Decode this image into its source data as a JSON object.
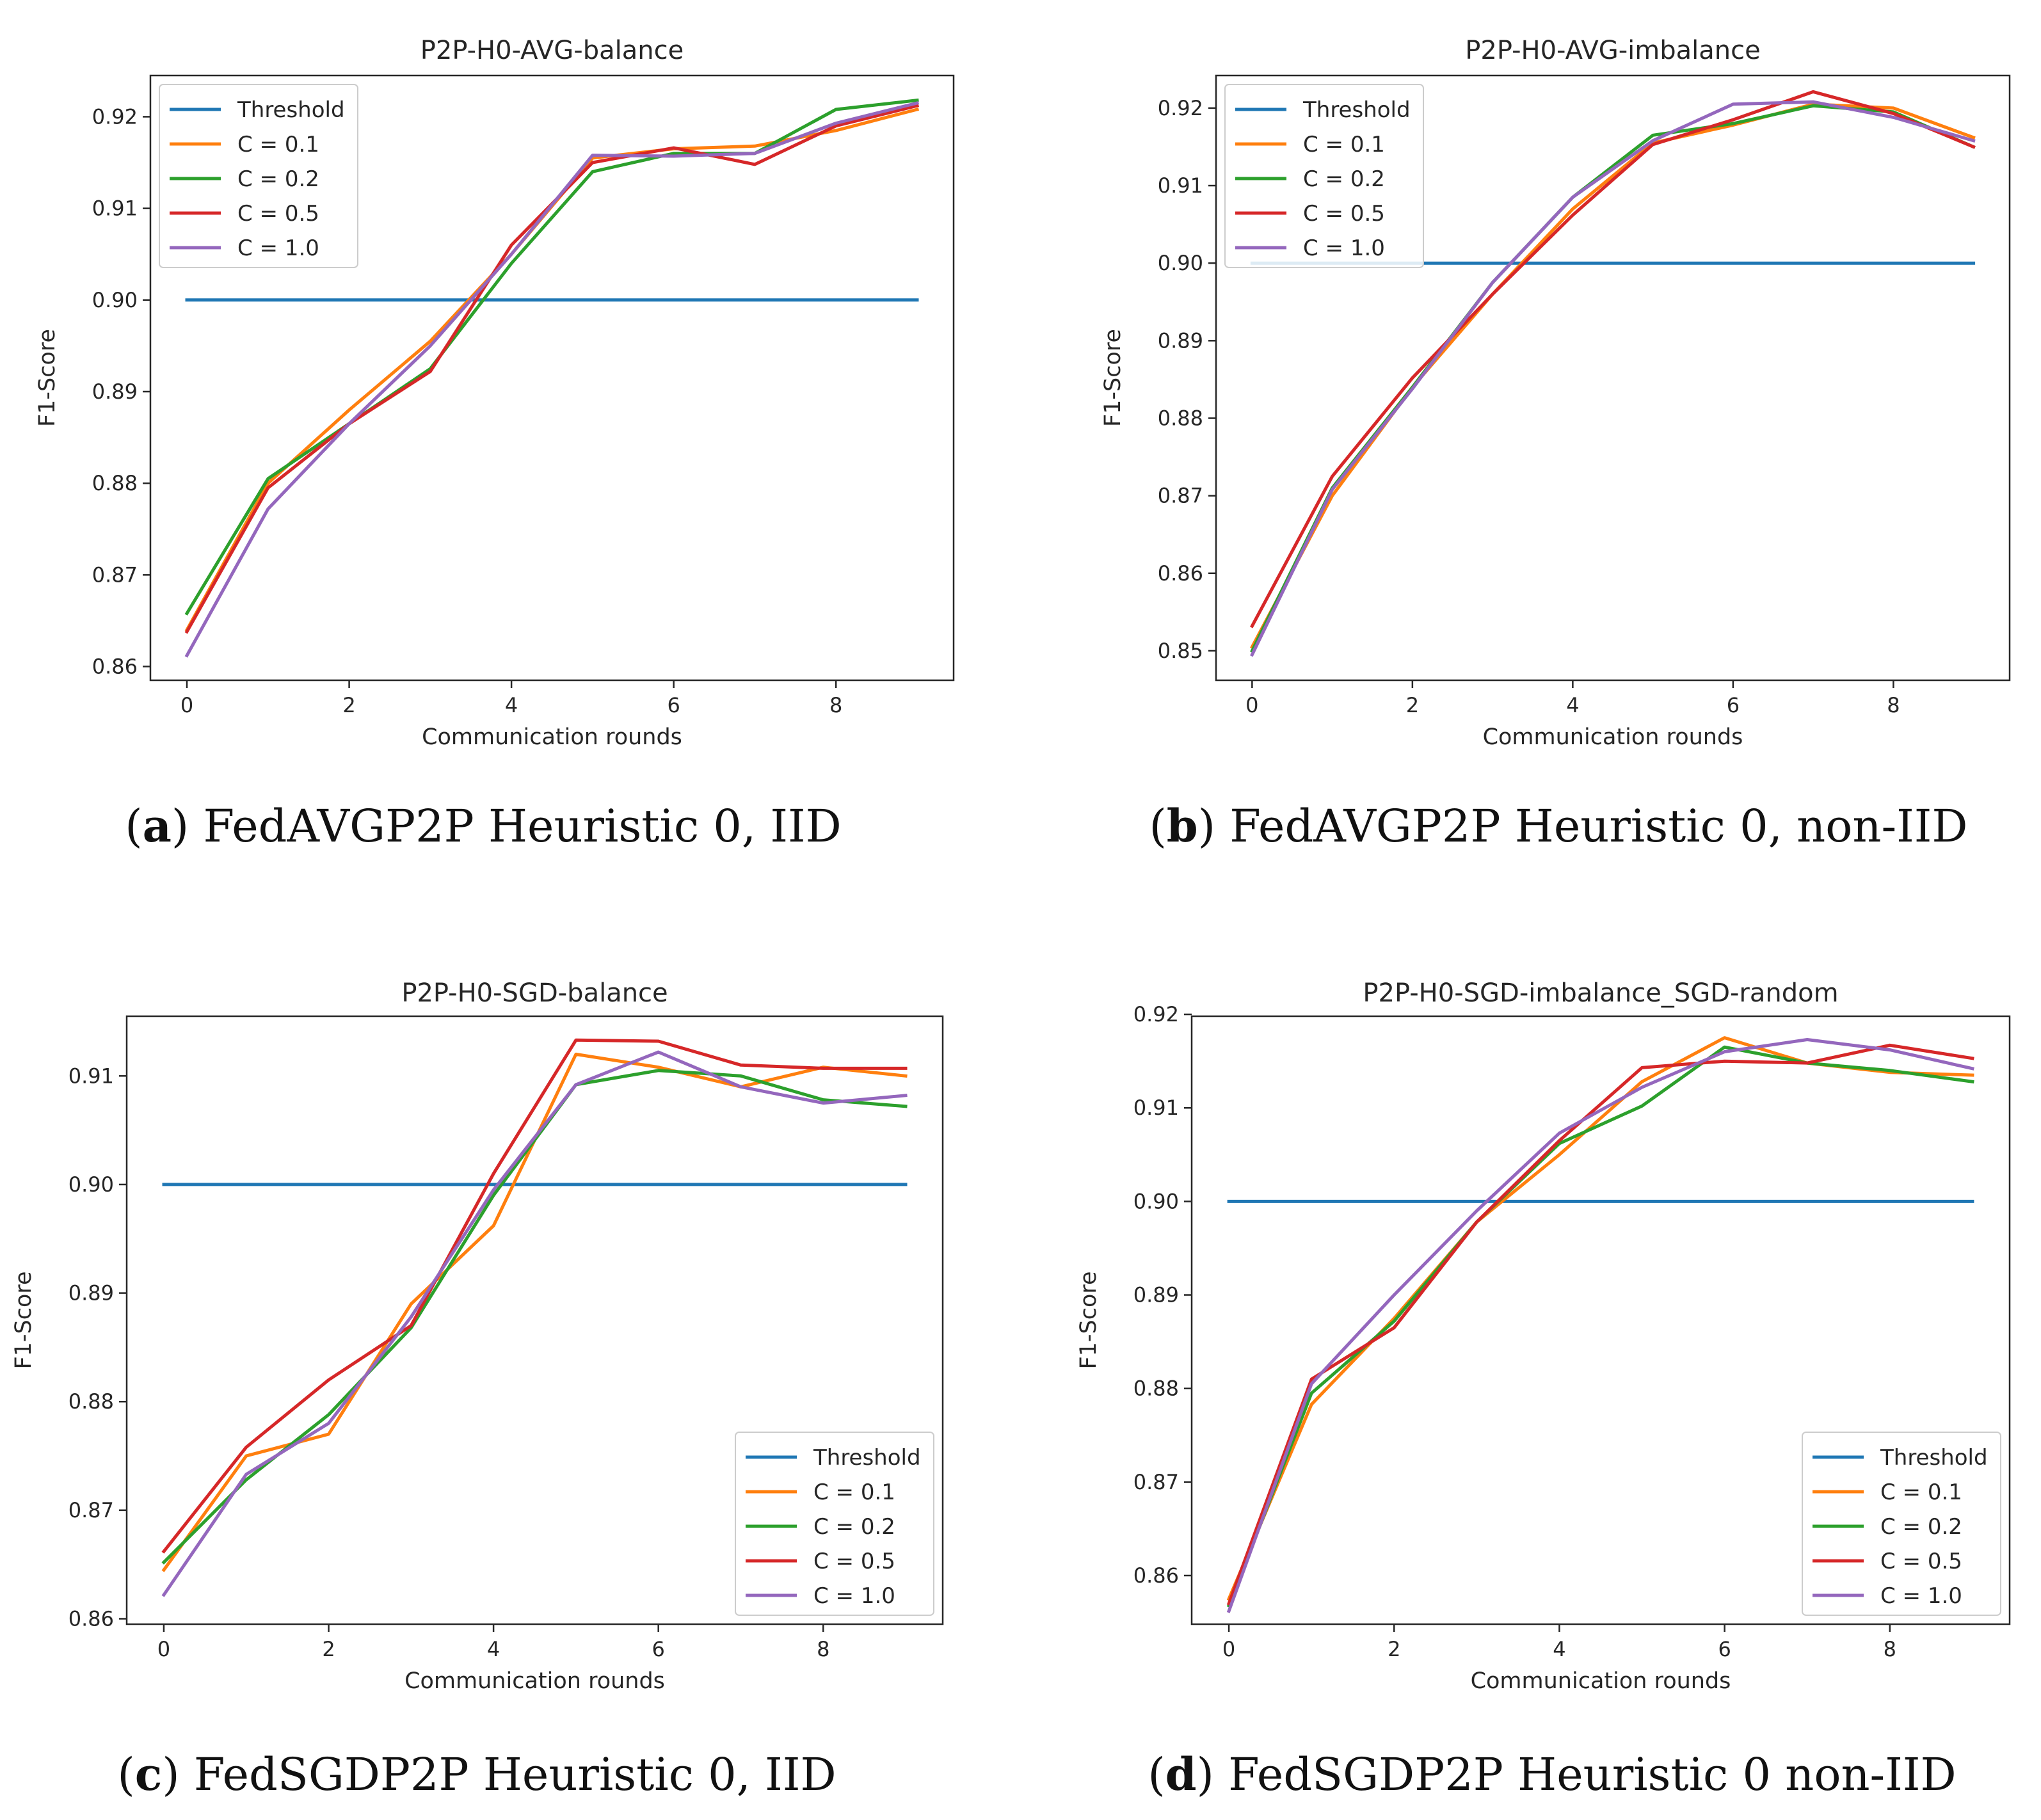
{
  "series_colors": [
    "#1f77b4",
    "#ff7f0e",
    "#2ca02c",
    "#d62728",
    "#9467bd"
  ],
  "chart_data": [
    {
      "type": "line",
      "title": "P2P-H0-AVG-balance",
      "xlabel": "Communication rounds",
      "ylabel": "F1-Score",
      "caption_letter": "a",
      "caption_text": "FedAVGP2P Heuristic 0, IID",
      "legend_position": "top-left",
      "grid": false,
      "xlim": [
        -0.45,
        9.45
      ],
      "ylim": [
        0.8585,
        0.9245
      ],
      "xticks": [
        0,
        2,
        4,
        6,
        8
      ],
      "xtick_labels": [
        "0",
        "2",
        "4",
        "6",
        "8"
      ],
      "yticks": [
        0.86,
        0.87,
        0.88,
        0.89,
        0.9,
        0.91,
        0.92
      ],
      "ytick_labels": [
        "0.86",
        "0.87",
        "0.88",
        "0.89",
        "0.90",
        "0.91",
        "0.92"
      ],
      "x": [
        0,
        1,
        2,
        3,
        4,
        5,
        6,
        7,
        8,
        9
      ],
      "series": [
        {
          "name": "Threshold",
          "values": [
            0.9,
            0.9,
            0.9,
            0.9,
            0.9,
            0.9,
            0.9,
            0.9,
            0.9,
            0.9
          ]
        },
        {
          "name": "C = 0.1",
          "values": [
            0.864,
            0.88,
            0.888,
            0.8955,
            0.905,
            0.9155,
            0.9165,
            0.9168,
            0.9185,
            0.9208
          ]
        },
        {
          "name": "C = 0.2",
          "values": [
            0.8658,
            0.8805,
            0.8865,
            0.8925,
            0.904,
            0.914,
            0.916,
            0.916,
            0.9208,
            0.9218
          ]
        },
        {
          "name": "C = 0.5",
          "values": [
            0.8638,
            0.8795,
            0.8865,
            0.8922,
            0.906,
            0.915,
            0.9166,
            0.9148,
            0.919,
            0.9212
          ]
        },
        {
          "name": "C = 1.0",
          "values": [
            0.8612,
            0.8772,
            0.8865,
            0.895,
            0.905,
            0.9158,
            0.9157,
            0.916,
            0.9193,
            0.9215
          ]
        }
      ]
    },
    {
      "type": "line",
      "title": "P2P-H0-AVG-imbalance",
      "xlabel": "Communication rounds",
      "ylabel": "F1-Score",
      "caption_letter": "b",
      "caption_text": "FedAVGP2P Heuristic 0, non-IID",
      "legend_position": "top-left",
      "grid": false,
      "xlim": [
        -0.45,
        9.45
      ],
      "ylim": [
        0.8462,
        0.9242
      ],
      "xticks": [
        0,
        2,
        4,
        6,
        8
      ],
      "xtick_labels": [
        "0",
        "2",
        "4",
        "6",
        "8"
      ],
      "yticks": [
        0.85,
        0.86,
        0.87,
        0.88,
        0.89,
        0.9,
        0.91,
        0.92
      ],
      "ytick_labels": [
        "0.85",
        "0.86",
        "0.87",
        "0.88",
        "0.89",
        "0.90",
        "0.91",
        "0.92"
      ],
      "x": [
        0,
        1,
        2,
        3,
        4,
        5,
        6,
        7,
        8,
        9
      ],
      "series": [
        {
          "name": "Threshold",
          "values": [
            0.9,
            0.9,
            0.9,
            0.9,
            0.9,
            0.9,
            0.9,
            0.9,
            0.9,
            0.9
          ]
        },
        {
          "name": "C = 0.1",
          "values": [
            0.8505,
            0.87,
            0.884,
            0.896,
            0.907,
            0.9155,
            0.9178,
            0.9205,
            0.92,
            0.9162
          ]
        },
        {
          "name": "C = 0.2",
          "values": [
            0.85,
            0.871,
            0.884,
            0.8975,
            0.9085,
            0.9165,
            0.918,
            0.9203,
            0.9195,
            0.915
          ]
        },
        {
          "name": "C = 0.5",
          "values": [
            0.8532,
            0.8725,
            0.8852,
            0.896,
            0.9062,
            0.9153,
            0.9185,
            0.9221,
            0.9193,
            0.915
          ]
        },
        {
          "name": "C = 1.0",
          "values": [
            0.8495,
            0.8708,
            0.8838,
            0.8975,
            0.9085,
            0.9158,
            0.9205,
            0.9208,
            0.9188,
            0.9158
          ]
        }
      ]
    },
    {
      "type": "line",
      "title": "P2P-H0-SGD-balance",
      "xlabel": "Communication rounds",
      "ylabel": "F1-Score",
      "caption_letter": "c",
      "caption_text": "FedSGDP2P Heuristic 0, IID",
      "legend_position": "bottom-right",
      "grid": false,
      "xlim": [
        -0.45,
        9.45
      ],
      "ylim": [
        0.8595,
        0.9155
      ],
      "xticks": [
        0,
        2,
        4,
        6,
        8
      ],
      "xtick_labels": [
        "0",
        "2",
        "4",
        "6",
        "8"
      ],
      "yticks": [
        0.86,
        0.87,
        0.88,
        0.89,
        0.9,
        0.91
      ],
      "ytick_labels": [
        "0.86",
        "0.87",
        "0.88",
        "0.89",
        "0.90",
        "0.91"
      ],
      "x": [
        0,
        1,
        2,
        3,
        4,
        5,
        6,
        7,
        8,
        9
      ],
      "series": [
        {
          "name": "Threshold",
          "values": [
            0.9,
            0.9,
            0.9,
            0.9,
            0.9,
            0.9,
            0.9,
            0.9,
            0.9,
            0.9
          ]
        },
        {
          "name": "C = 0.1",
          "values": [
            0.8645,
            0.875,
            0.877,
            0.889,
            0.8962,
            0.912,
            0.9108,
            0.909,
            0.9108,
            0.91
          ]
        },
        {
          "name": "C = 0.2",
          "values": [
            0.8652,
            0.8728,
            0.8788,
            0.8868,
            0.899,
            0.9092,
            0.9105,
            0.91,
            0.9078,
            0.9072
          ]
        },
        {
          "name": "C = 0.5",
          "values": [
            0.8662,
            0.8758,
            0.882,
            0.887,
            0.901,
            0.9133,
            0.9132,
            0.911,
            0.9107,
            0.9107
          ]
        },
        {
          "name": "C = 1.0",
          "values": [
            0.8622,
            0.8733,
            0.878,
            0.8878,
            0.8995,
            0.9092,
            0.9122,
            0.909,
            0.9075,
            0.9082
          ]
        }
      ]
    },
    {
      "type": "line",
      "title": "P2P-H0-SGD-imbalance_SGD-random",
      "xlabel": "Communication rounds",
      "ylabel": "F1-Score",
      "caption_letter": "d",
      "caption_text": "FedSGDP2P Heuristic 0 non-IID",
      "legend_position": "bottom-right",
      "grid": false,
      "xlim": [
        -0.45,
        9.45
      ],
      "ylim": [
        0.8548,
        0.9198
      ],
      "xticks": [
        0,
        2,
        4,
        6,
        8
      ],
      "xtick_labels": [
        "0",
        "2",
        "4",
        "6",
        "8"
      ],
      "yticks": [
        0.86,
        0.87,
        0.88,
        0.89,
        0.9,
        0.91,
        0.92
      ],
      "ytick_labels": [
        "0.86",
        "0.87",
        "0.88",
        "0.89",
        "0.90",
        "0.91",
        "0.92"
      ],
      "x": [
        0,
        1,
        2,
        3,
        4,
        5,
        6,
        7,
        8,
        9
      ],
      "series": [
        {
          "name": "Threshold",
          "values": [
            0.9,
            0.9,
            0.9,
            0.9,
            0.9,
            0.9,
            0.9,
            0.9,
            0.9,
            0.9
          ]
        },
        {
          "name": "C = 0.1",
          "values": [
            0.8575,
            0.8783,
            0.8875,
            0.8978,
            0.905,
            0.9128,
            0.9175,
            0.9148,
            0.9138,
            0.9135
          ]
        },
        {
          "name": "C = 0.2",
          "values": [
            0.8568,
            0.8795,
            0.8872,
            0.8978,
            0.9062,
            0.9102,
            0.9165,
            0.9148,
            0.914,
            0.9128
          ]
        },
        {
          "name": "C = 0.5",
          "values": [
            0.857,
            0.881,
            0.8865,
            0.8978,
            0.9065,
            0.9143,
            0.915,
            0.9148,
            0.9167,
            0.9153
          ]
        },
        {
          "name": "C = 1.0",
          "values": [
            0.8562,
            0.8805,
            0.89,
            0.899,
            0.9073,
            0.9122,
            0.916,
            0.9173,
            0.9162,
            0.9142
          ]
        }
      ]
    }
  ]
}
